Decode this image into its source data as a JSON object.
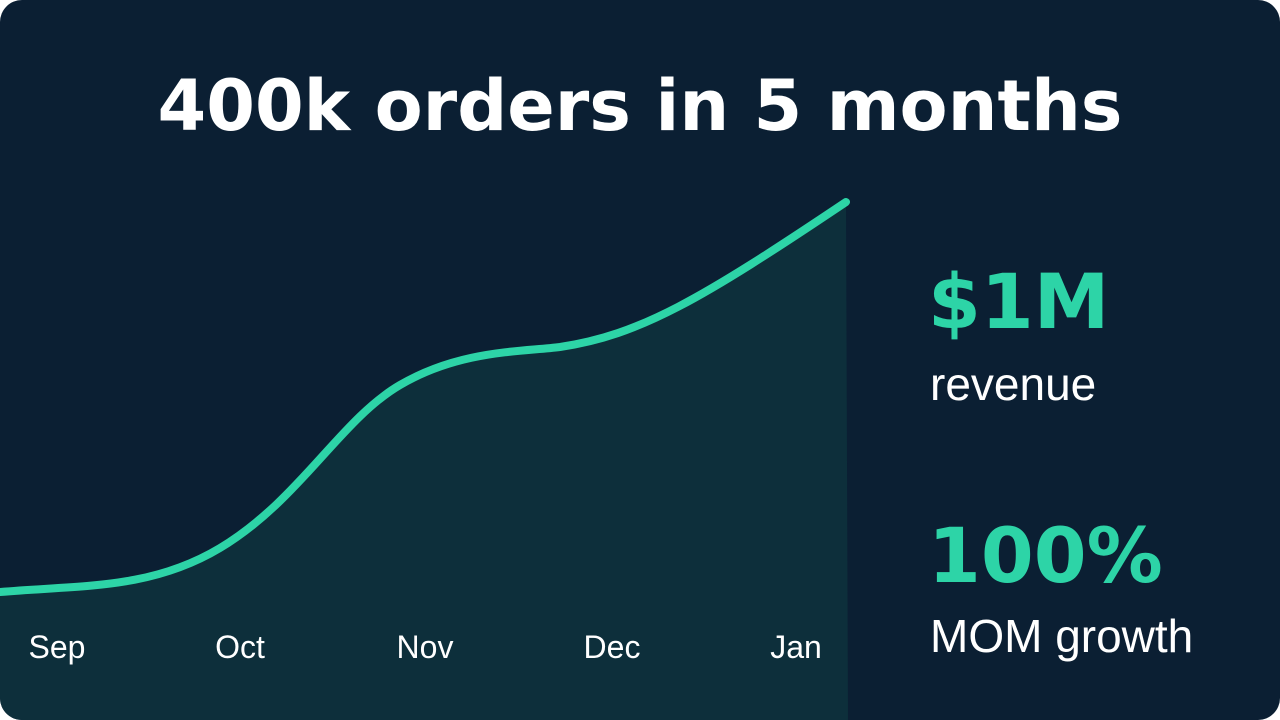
{
  "title": "400k orders in 5 months",
  "months": [
    "Sep",
    "Oct",
    "Nov",
    "Dec",
    "Jan"
  ],
  "stats": [
    {
      "value": "$1M",
      "label": "revenue"
    },
    {
      "value": "100%",
      "label": "MOM growth"
    }
  ]
}
